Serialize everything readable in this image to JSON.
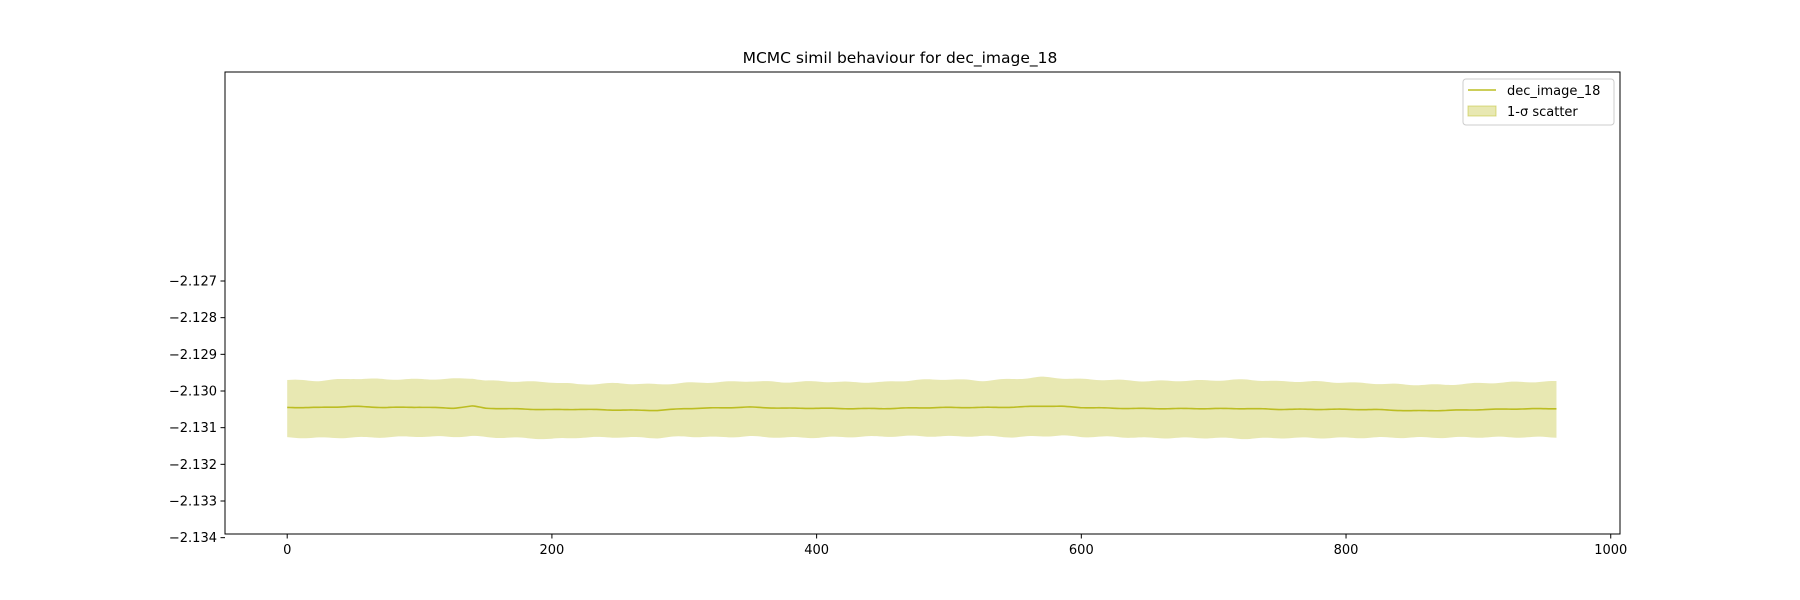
{
  "chart_data": {
    "type": "line",
    "title": "MCMC simil behaviour for dec_image_18",
    "xlabel": "",
    "ylabel": "",
    "xlim": [
      -47,
      1007
    ],
    "ylim": [
      -2.1339,
      -2.1213
    ],
    "xticks": [
      0,
      200,
      400,
      600,
      800,
      1000
    ],
    "xtick_labels": [
      "0",
      "200",
      "400",
      "600",
      "800",
      "1000"
    ],
    "yticks": [
      -2.127,
      -2.128,
      -2.129,
      -2.13,
      -2.131,
      -2.132,
      -2.133,
      -2.134
    ],
    "ytick_labels": [
      "−2.127",
      "−2.128",
      "−2.129",
      "−2.130",
      "−2.131",
      "−2.132",
      "−2.133",
      "−2.134"
    ],
    "grid": false,
    "legend_position": "top-right",
    "series": [
      {
        "name": "dec_image_18",
        "color": "#bcbd22",
        "x": [
          0,
          25,
          50,
          75,
          100,
          125,
          140,
          150,
          175,
          200,
          220,
          250,
          280,
          300,
          325,
          350,
          375,
          400,
          425,
          450,
          475,
          500,
          525,
          550,
          570,
          585,
          600,
          625,
          650,
          675,
          700,
          725,
          750,
          775,
          800,
          825,
          850,
          875,
          900,
          925,
          959
        ],
        "mean": [
          -2.13045,
          -2.13045,
          -2.13042,
          -2.13045,
          -2.13044,
          -2.13047,
          -2.13041,
          -2.13047,
          -2.13049,
          -2.13051,
          -2.1305,
          -2.13052,
          -2.13053,
          -2.13048,
          -2.13046,
          -2.13044,
          -2.13047,
          -2.13047,
          -2.13048,
          -2.13048,
          -2.13046,
          -2.13045,
          -2.13045,
          -2.13044,
          -2.13041,
          -2.13042,
          -2.13045,
          -2.13047,
          -2.13048,
          -2.13048,
          -2.13048,
          -2.13048,
          -2.1305,
          -2.1305,
          -2.1305,
          -2.13051,
          -2.13054,
          -2.13053,
          -2.13051,
          -2.13049,
          -2.13048
        ],
        "upper": [
          -2.1297,
          -2.12972,
          -2.12966,
          -2.12968,
          -2.12968,
          -2.12967,
          -2.12965,
          -2.12972,
          -2.12974,
          -2.12976,
          -2.12982,
          -2.12979,
          -2.12982,
          -2.12978,
          -2.12976,
          -2.12973,
          -2.12976,
          -2.12974,
          -2.12976,
          -2.12976,
          -2.1297,
          -2.12968,
          -2.12972,
          -2.12967,
          -2.12962,
          -2.12965,
          -2.12968,
          -2.1297,
          -2.12973,
          -2.12972,
          -2.12971,
          -2.12969,
          -2.12974,
          -2.12974,
          -2.12977,
          -2.1298,
          -2.12983,
          -2.12983,
          -2.12979,
          -2.12976,
          -2.12974
        ],
        "lower": [
          -2.13127,
          -2.13128,
          -2.13127,
          -2.13126,
          -2.13124,
          -2.13125,
          -2.13123,
          -2.13126,
          -2.13128,
          -2.13131,
          -2.13127,
          -2.13126,
          -2.13128,
          -2.13124,
          -2.13126,
          -2.13124,
          -2.13127,
          -2.13127,
          -2.13125,
          -2.13124,
          -2.13123,
          -2.13124,
          -2.13123,
          -2.13126,
          -2.13123,
          -2.13122,
          -2.13125,
          -2.13125,
          -2.13128,
          -2.13128,
          -2.13128,
          -2.1313,
          -2.13128,
          -2.13128,
          -2.13128,
          -2.13127,
          -2.13127,
          -2.13127,
          -2.13126,
          -2.13126,
          -2.13126
        ]
      }
    ],
    "band_label": "1-σ scatter",
    "band_color": "#bcbd22",
    "band_opacity": 0.35
  }
}
